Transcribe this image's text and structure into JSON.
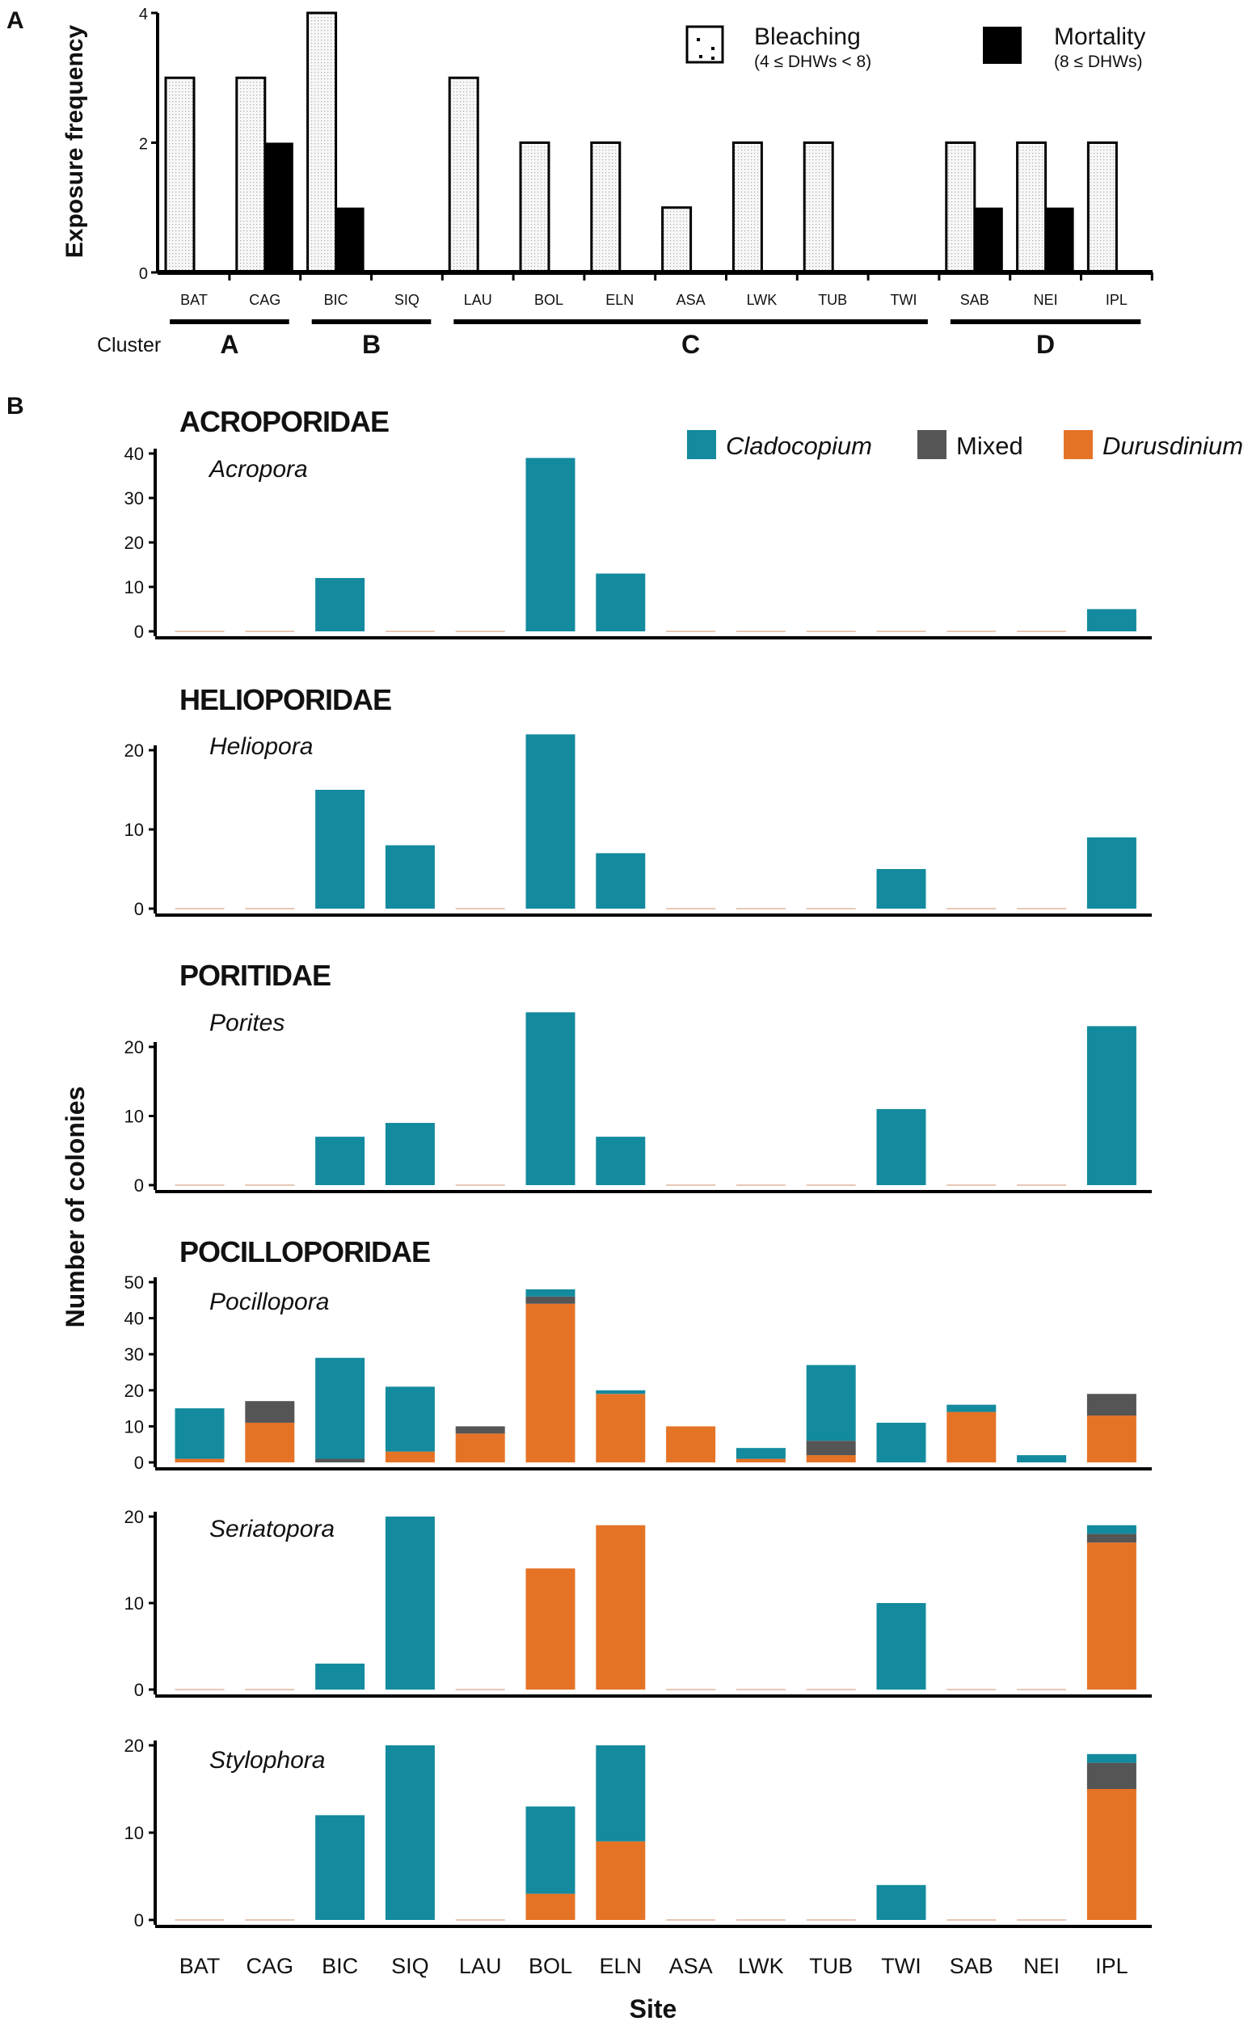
{
  "colors": {
    "cladocopium": "#138a9e",
    "mixed": "#555555",
    "durusdinium": "#e57326",
    "mortality": "#000000",
    "bleaching": "#f2f2f2"
  },
  "chart_data": [
    {
      "panel_label": "A",
      "type": "bar",
      "ylabel": "Exposure frequency",
      "ylim": [
        0,
        4
      ],
      "yticks": [
        0,
        2,
        4
      ],
      "categories": [
        "BAT",
        "CAG",
        "BIC",
        "SIQ",
        "LAU",
        "BOL",
        "ELN",
        "ASA",
        "LWK",
        "TUB",
        "TWI",
        "SAB",
        "NEI",
        "IPL"
      ],
      "series": [
        {
          "name": "Bleaching",
          "sub": "(4 ≤ DHWs < 8)",
          "values": [
            3,
            3,
            4,
            0,
            3,
            2,
            2,
            1,
            2,
            2,
            0,
            2,
            2,
            2
          ]
        },
        {
          "name": "Mortality",
          "sub": "(8 ≤ DHWs)",
          "values": [
            0,
            2,
            1,
            0,
            0,
            0,
            0,
            0,
            0,
            0,
            0,
            1,
            1,
            0
          ]
        }
      ],
      "cluster_label": "Cluster",
      "clusters": [
        {
          "name": "A",
          "from": 0,
          "to": 1
        },
        {
          "name": "B",
          "from": 2,
          "to": 3
        },
        {
          "name": "C",
          "from": 4,
          "to": 10
        },
        {
          "name": "D",
          "from": 11,
          "to": 13
        }
      ]
    },
    {
      "panel_label": "B",
      "type": "stacked-bar",
      "ylabel": "Number of colonies",
      "xlabel": "Site",
      "categories": [
        "BAT",
        "CAG",
        "BIC",
        "SIQ",
        "LAU",
        "BOL",
        "ELN",
        "ASA",
        "LWK",
        "TUB",
        "TWI",
        "SAB",
        "NEI",
        "IPL"
      ],
      "legend": [
        "Cladocopium",
        "Mixed",
        "Durusdinium"
      ],
      "panels": [
        {
          "family": "ACROPORIDAE",
          "genus": "Acropora",
          "ylim": [
            0,
            40
          ],
          "yticks": [
            0,
            10,
            20,
            30,
            40
          ],
          "durusdinium": [
            0,
            0,
            0,
            0,
            0,
            0,
            0,
            0,
            0,
            0,
            0,
            0,
            0,
            0
          ],
          "mixed": [
            0,
            0,
            0,
            0,
            0,
            0,
            0,
            0,
            0,
            0,
            0,
            0,
            0,
            0
          ],
          "cladocopium": [
            0,
            0,
            12,
            0,
            0,
            39,
            13,
            0,
            0,
            0,
            0,
            0,
            0,
            5
          ]
        },
        {
          "family": "HELIOPORIDAE",
          "genus": "Heliopora",
          "ylim": [
            0,
            22
          ],
          "yticks": [
            0,
            10,
            20
          ],
          "durusdinium": [
            0,
            0,
            0,
            0,
            0,
            0,
            0,
            0,
            0,
            0,
            0,
            0,
            0,
            0
          ],
          "mixed": [
            0,
            0,
            0,
            0,
            0,
            0,
            0,
            0,
            0,
            0,
            0,
            0,
            0,
            0
          ],
          "cladocopium": [
            0,
            0,
            15,
            8,
            0,
            22,
            7,
            0,
            0,
            0,
            5,
            0,
            0,
            9
          ]
        },
        {
          "family": "PORITIDAE",
          "genus": "Porites",
          "ylim": [
            0,
            25
          ],
          "yticks": [
            0,
            10,
            20
          ],
          "durusdinium": [
            0,
            0,
            0,
            0,
            0,
            0,
            0,
            0,
            0,
            0,
            0,
            0,
            0,
            0
          ],
          "mixed": [
            0,
            0,
            0,
            0,
            0,
            0,
            0,
            0,
            0,
            0,
            0,
            0,
            0,
            0
          ],
          "cladocopium": [
            0,
            0,
            7,
            9,
            0,
            25,
            7,
            0,
            0,
            0,
            11,
            0,
            0,
            23
          ]
        },
        {
          "family": "POCILLOPORIDAE",
          "genus": "Pocillopora",
          "ylim": [
            0,
            50
          ],
          "yticks": [
            0,
            10,
            20,
            30,
            40,
            50
          ],
          "durusdinium": [
            1,
            11,
            0,
            3,
            8,
            44,
            19,
            10,
            1,
            2,
            0,
            14,
            0,
            13
          ],
          "mixed": [
            0,
            6,
            1,
            0,
            2,
            2,
            0,
            0,
            0,
            4,
            0,
            0,
            0,
            6
          ],
          "cladocopium": [
            14,
            0,
            28,
            18,
            0,
            2,
            1,
            0,
            3,
            21,
            11,
            2,
            2,
            0
          ]
        },
        {
          "family": "",
          "genus": "Seriatopora",
          "ylim": [
            0,
            20
          ],
          "yticks": [
            0,
            10,
            20
          ],
          "durusdinium": [
            0,
            0,
            0,
            0,
            0,
            14,
            19,
            0,
            0,
            0,
            0,
            0,
            0,
            17
          ],
          "mixed": [
            0,
            0,
            0,
            0,
            0,
            0,
            0,
            0,
            0,
            0,
            0,
            0,
            0,
            1
          ],
          "cladocopium": [
            0,
            0,
            3,
            20,
            0,
            0,
            0,
            0,
            0,
            0,
            10,
            0,
            0,
            1
          ]
        },
        {
          "family": "",
          "genus": "Stylophora",
          "ylim": [
            0,
            20
          ],
          "yticks": [
            0,
            10,
            20
          ],
          "durusdinium": [
            0,
            0,
            0,
            0,
            0,
            3,
            9,
            0,
            0,
            0,
            0,
            0,
            0,
            15
          ],
          "mixed": [
            0,
            0,
            0,
            0,
            0,
            0,
            0,
            0,
            0,
            0,
            0,
            0,
            0,
            3
          ],
          "cladocopium": [
            0,
            0,
            12,
            20,
            0,
            10,
            11,
            0,
            0,
            0,
            4,
            0,
            0,
            1
          ]
        }
      ]
    }
  ]
}
